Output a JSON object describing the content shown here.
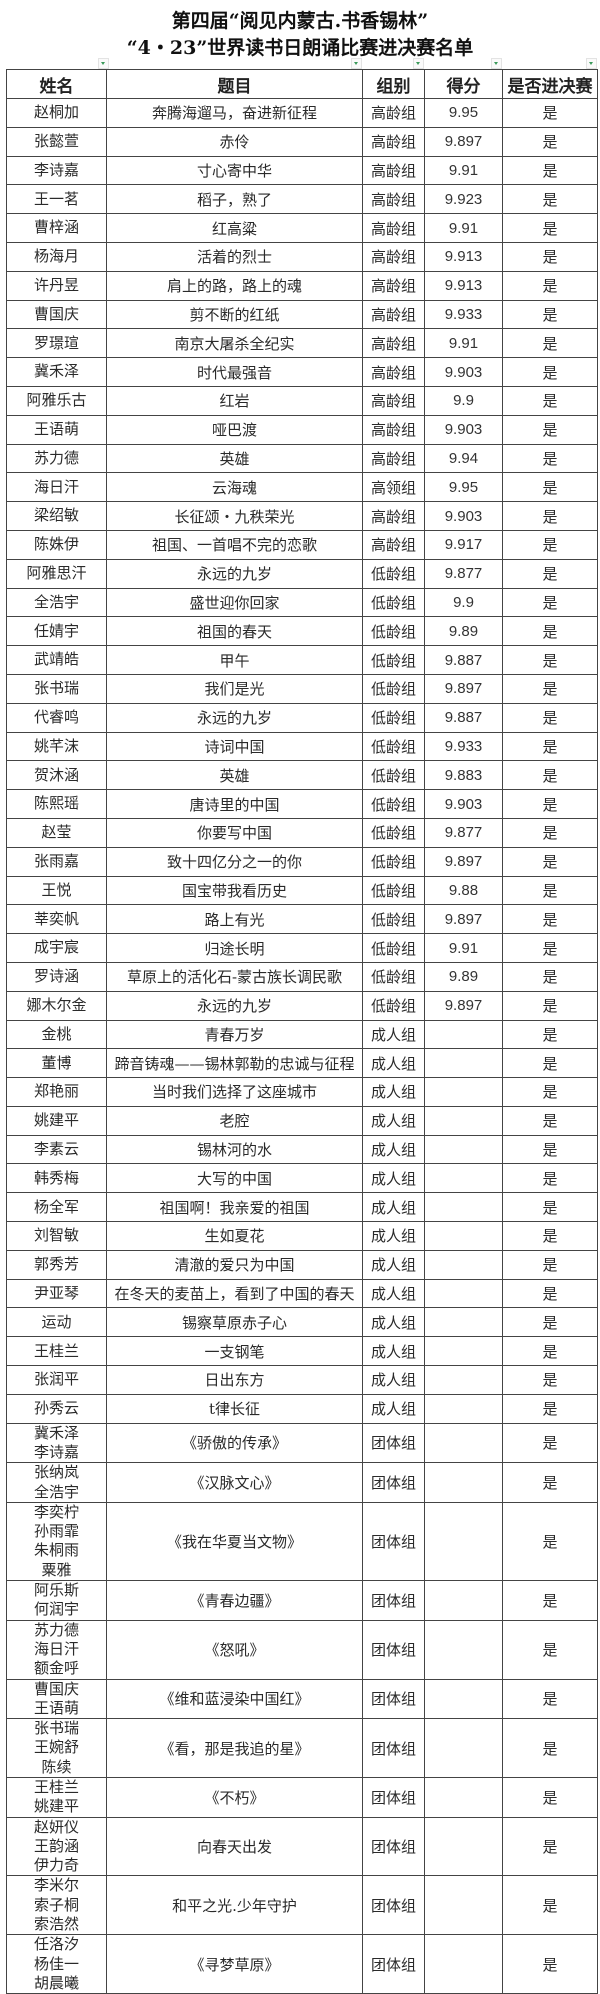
{
  "title": {
    "line1": "第四届“阅见内蒙古.书香锡林”",
    "line2": "“4・23”世界读书日朗诵比赛进决赛名单"
  },
  "columns": [
    "姓名",
    "题目",
    "组别",
    "得分",
    "是否进决赛"
  ],
  "rows": [
    {
      "names": [
        "赵桐加"
      ],
      "title": "奔腾海遛马，奋进新征程",
      "group": "高龄组",
      "score": "9.95",
      "final": "是"
    },
    {
      "names": [
        "张懿萱"
      ],
      "title": "赤伶",
      "group": "高龄组",
      "score": "9.897",
      "final": "是"
    },
    {
      "names": [
        "李诗嘉"
      ],
      "title": "寸心寄中华",
      "group": "高龄组",
      "score": "9.91",
      "final": "是"
    },
    {
      "names": [
        "王一茗"
      ],
      "title": "稻子，熟了",
      "group": "高龄组",
      "score": "9.923",
      "final": "是"
    },
    {
      "names": [
        "曹梓涵"
      ],
      "title": "红高粱",
      "group": "高龄组",
      "score": "9.91",
      "final": "是"
    },
    {
      "names": [
        "杨海月"
      ],
      "title": "活着的烈士",
      "group": "高龄组",
      "score": "9.913",
      "final": "是"
    },
    {
      "names": [
        "许丹昱"
      ],
      "title": "肩上的路，路上的魂",
      "group": "高龄组",
      "score": "9.913",
      "final": "是"
    },
    {
      "names": [
        "曹国庆"
      ],
      "title": "剪不断的红纸",
      "group": "高龄组",
      "score": "9.933",
      "final": "是"
    },
    {
      "names": [
        "罗璟瑄"
      ],
      "title": "南京大屠杀全纪实",
      "group": "高龄组",
      "score": "9.91",
      "final": "是"
    },
    {
      "names": [
        "冀禾泽"
      ],
      "title": "时代最强音",
      "group": "高龄组",
      "score": "9.903",
      "final": "是"
    },
    {
      "names": [
        "阿雅乐古"
      ],
      "title": "红岩",
      "group": "高龄组",
      "score": "9.9",
      "final": "是"
    },
    {
      "names": [
        "王语萌"
      ],
      "title": "哑巴渡",
      "group": "高龄组",
      "score": "9.903",
      "final": "是"
    },
    {
      "names": [
        "苏力德"
      ],
      "title": "英雄",
      "group": "高龄组",
      "score": "9.94",
      "final": "是"
    },
    {
      "names": [
        "海日汗"
      ],
      "title": "云海魂",
      "group": "高领组",
      "score": "9.95",
      "final": "是"
    },
    {
      "names": [
        "梁绍敏"
      ],
      "title": "长征颂・九秩荣光",
      "group": "高龄组",
      "score": "9.903",
      "final": "是"
    },
    {
      "names": [
        "陈姝伊"
      ],
      "title": "祖国、一首唱不完的恋歌",
      "group": "高龄组",
      "score": "9.917",
      "final": "是"
    },
    {
      "names": [
        "阿雅思汗"
      ],
      "title": "永远的九岁",
      "group": "低龄组",
      "score": "9.877",
      "final": "是"
    },
    {
      "names": [
        "全浩宇"
      ],
      "title": "盛世迎你回家",
      "group": "低龄组",
      "score": "9.9",
      "final": "是"
    },
    {
      "names": [
        "任婧宇"
      ],
      "title": "祖国的春天",
      "group": "低龄组",
      "score": "9.89",
      "final": "是"
    },
    {
      "names": [
        "武靖皓"
      ],
      "title": "甲午",
      "group": "低龄组",
      "score": "9.887",
      "final": "是"
    },
    {
      "names": [
        "张书瑞"
      ],
      "title": "我们是光",
      "group": "低龄组",
      "score": "9.897",
      "final": "是"
    },
    {
      "names": [
        "代睿鸣"
      ],
      "title": "永远的九岁",
      "group": "低龄组",
      "score": "9.887",
      "final": "是"
    },
    {
      "names": [
        "姚芊沫"
      ],
      "title": "诗词中国",
      "group": "低龄组",
      "score": "9.933",
      "final": "是"
    },
    {
      "names": [
        "贺沐涵"
      ],
      "title": "英雄",
      "group": "低龄组",
      "score": "9.883",
      "final": "是"
    },
    {
      "names": [
        "陈熙瑶"
      ],
      "title": "唐诗里的中国",
      "group": "低龄组",
      "score": "9.903",
      "final": "是"
    },
    {
      "names": [
        "赵莹"
      ],
      "title": "你要写中国",
      "group": "低龄组",
      "score": "9.877",
      "final": "是"
    },
    {
      "names": [
        "张雨嘉"
      ],
      "title": "致十四亿分之一的你",
      "group": "低龄组",
      "score": "9.897",
      "final": "是"
    },
    {
      "names": [
        "王悦"
      ],
      "title": "国宝带我看历史",
      "group": "低龄组",
      "score": "9.88",
      "final": "是"
    },
    {
      "names": [
        "莘奕帆"
      ],
      "title": "路上有光",
      "group": "低龄组",
      "score": "9.897",
      "final": "是"
    },
    {
      "names": [
        "成宇宸"
      ],
      "title": "归途长明",
      "group": "低龄组",
      "score": "9.91",
      "final": "是"
    },
    {
      "names": [
        "罗诗涵"
      ],
      "title": "草原上的活化石-蒙古族长调民歌",
      "group": "低龄组",
      "score": "9.89",
      "final": "是"
    },
    {
      "names": [
        "娜木尔金"
      ],
      "title": "永远的九岁",
      "group": "低龄组",
      "score": "9.897",
      "final": "是"
    },
    {
      "names": [
        "金桃"
      ],
      "title": "青春万岁",
      "group": "成人组",
      "score": "",
      "final": "是"
    },
    {
      "names": [
        "董博"
      ],
      "title": "蹄音铸魂——锡林郭勒的忠诚与征程",
      "group": "成人组",
      "score": "",
      "final": "是"
    },
    {
      "names": [
        "郑艳丽"
      ],
      "title": "当时我们选择了这座城市",
      "group": "成人组",
      "score": "",
      "final": "是"
    },
    {
      "names": [
        "姚建平"
      ],
      "title": "老腔",
      "group": "成人组",
      "score": "",
      "final": "是"
    },
    {
      "names": [
        "李素云"
      ],
      "title": "锡林河的水",
      "group": "成人组",
      "score": "",
      "final": "是"
    },
    {
      "names": [
        "韩秀梅"
      ],
      "title": "大写的中国",
      "group": "成人组",
      "score": "",
      "final": "是"
    },
    {
      "names": [
        "杨全军"
      ],
      "title": "祖国啊！我亲爱的祖国",
      "group": "成人组",
      "score": "",
      "final": "是"
    },
    {
      "names": [
        "刘智敏"
      ],
      "title": "生如夏花",
      "group": "成人组",
      "score": "",
      "final": "是"
    },
    {
      "names": [
        "郭秀芳"
      ],
      "title": "清澈的爱只为中国",
      "group": "成人组",
      "score": "",
      "final": "是"
    },
    {
      "names": [
        "尹亚琴"
      ],
      "title": "在冬天的麦苗上，看到了中国的春天",
      "group": "成人组",
      "score": "",
      "final": "是"
    },
    {
      "names": [
        "运动"
      ],
      "title": "锡察草原赤子心",
      "group": "成人组",
      "score": "",
      "final": "是"
    },
    {
      "names": [
        "王桂兰"
      ],
      "title": "一支钢笔",
      "group": "成人组",
      "score": "",
      "final": "是"
    },
    {
      "names": [
        "张润平"
      ],
      "title": "日出东方",
      "group": "成人组",
      "score": "",
      "final": "是"
    },
    {
      "names": [
        "孙秀云"
      ],
      "title": "t律长征",
      "group": "成人组",
      "score": "",
      "final": "是"
    },
    {
      "names": [
        "冀禾泽",
        "李诗嘉"
      ],
      "title": "《骄傲的传承》",
      "group": "团体组",
      "score": "",
      "final": "是"
    },
    {
      "names": [
        "张纳岚",
        "全浩宇"
      ],
      "title": "《汉脉文心》",
      "group": "团体组",
      "score": "",
      "final": "是"
    },
    {
      "names": [
        "李奕柠",
        "孙雨霏",
        "朱桐雨",
        "粟雅"
      ],
      "title": "《我在华夏当文物》",
      "group": "团体组",
      "score": "",
      "final": "是"
    },
    {
      "names": [
        "阿乐斯",
        "何润宇"
      ],
      "title": "《青春边疆》",
      "group": "团体组",
      "score": "",
      "final": "是"
    },
    {
      "names": [
        "苏力德",
        "海日汗",
        "额金呼"
      ],
      "title": "《怒吼》",
      "group": "团体组",
      "score": "",
      "final": "是"
    },
    {
      "names": [
        "曹国庆",
        "王语萌"
      ],
      "title": "《维和蓝浸染中国红》",
      "group": "团体组",
      "score": "",
      "final": "是"
    },
    {
      "names": [
        "张书瑞",
        "王婉舒",
        "陈续"
      ],
      "title": "《看，那是我追的星》",
      "group": "团体组",
      "score": "",
      "final": "是"
    },
    {
      "names": [
        "王桂兰",
        "姚建平"
      ],
      "title": "《不朽》",
      "group": "团体组",
      "score": "",
      "final": "是"
    },
    {
      "names": [
        "赵妍仪",
        "王韵涵",
        "伊力奇"
      ],
      "title": "向春天出发",
      "group": "团体组",
      "score": "",
      "final": "是"
    },
    {
      "names": [
        "李米尔",
        "索子桐",
        "索浩然"
      ],
      "title": "和平之光.少年守护",
      "group": "团体组",
      "score": "",
      "final": "是"
    },
    {
      "names": [
        "任洛汐",
        "杨佳一",
        "胡晨曦"
      ],
      "title": "《寻梦草原》",
      "group": "团体组",
      "score": "",
      "final": "是"
    }
  ],
  "filter_icon_color": "#3a9a5a"
}
